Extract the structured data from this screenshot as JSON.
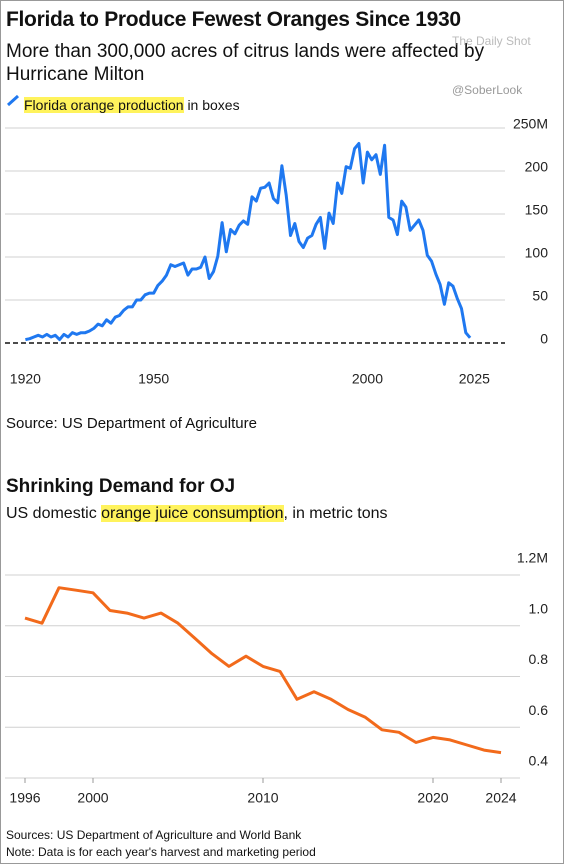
{
  "watermarks": [
    "The Daily Shot",
    "@SoberLook"
  ],
  "chart_data": [
    {
      "type": "line",
      "title": "Florida to Produce Fewest Oranges Since 1930",
      "subtitle": "More than 300,000 acres of citrus lands were affected by Hurricane Milton",
      "unit": "in boxes",
      "source": "Source: US Department of Agriculture",
      "x": [
        1920,
        1921,
        1922,
        1923,
        1924,
        1925,
        1926,
        1927,
        1928,
        1929,
        1930,
        1931,
        1932,
        1933,
        1934,
        1935,
        1936,
        1937,
        1938,
        1939,
        1940,
        1941,
        1942,
        1943,
        1944,
        1945,
        1946,
        1947,
        1948,
        1949,
        1950,
        1951,
        1952,
        1953,
        1954,
        1955,
        1956,
        1957,
        1958,
        1959,
        1960,
        1961,
        1962,
        1963,
        1964,
        1965,
        1966,
        1967,
        1968,
        1969,
        1970,
        1971,
        1972,
        1973,
        1974,
        1975,
        1976,
        1977,
        1978,
        1979,
        1980,
        1981,
        1982,
        1983,
        1984,
        1985,
        1986,
        1987,
        1988,
        1989,
        1990,
        1991,
        1992,
        1993,
        1994,
        1995,
        1996,
        1997,
        1998,
        1999,
        2000,
        2001,
        2002,
        2003,
        2004,
        2005,
        2006,
        2007,
        2008,
        2009,
        2010,
        2011,
        2012,
        2013,
        2014,
        2015,
        2016,
        2017,
        2018,
        2019,
        2020,
        2021,
        2022,
        2023,
        2024
      ],
      "series": [
        {
          "name": "Florida orange production",
          "color": "#1f78f0",
          "values": [
            4,
            5,
            7,
            9,
            7,
            10,
            7,
            9,
            4,
            10,
            7,
            12,
            10,
            12,
            12,
            14,
            17,
            22,
            20,
            27,
            23,
            30,
            32,
            38,
            42,
            42,
            50,
            50,
            56,
            58,
            58,
            67,
            72,
            79,
            91,
            89,
            91,
            93,
            79,
            86,
            86,
            88,
            100,
            75,
            83,
            101,
            140,
            106,
            132,
            127,
            137,
            142,
            138,
            170,
            165,
            180,
            181,
            186,
            168,
            163,
            206,
            172,
            125,
            139,
            118,
            111,
            122,
            125,
            138,
            146,
            110,
            151,
            139,
            186,
            174,
            205,
            203,
            226,
            232,
            186,
            222,
            213,
            219,
            196,
            230,
            146,
            143,
            126,
            165,
            158,
            131,
            137,
            143,
            131,
            102,
            95,
            80,
            68,
            45,
            70,
            66,
            52,
            40,
            12,
            6
          ]
        }
      ],
      "xlim": [
        1915,
        2031
      ],
      "xticks": [
        1920,
        1950,
        2000,
        2025
      ],
      "ylim": [
        0,
        250
      ],
      "yticks": [
        0,
        50,
        100,
        150,
        200,
        {
          "value": 250,
          "label": "250M"
        }
      ],
      "grid": true
    },
    {
      "type": "line",
      "title": "Shrinking Demand for OJ",
      "subtitle_prefix": "US domestic",
      "subtitle_suffix": ", in metric tons",
      "notes": [
        "Sources: US Department of Agriculture and World Bank",
        "Note: Data is for each year's harvest and marketing period"
      ],
      "x": [
        1996,
        1997,
        1998,
        1999,
        2000,
        2001,
        2002,
        2003,
        2004,
        2005,
        2006,
        2007,
        2008,
        2009,
        2010,
        2011,
        2012,
        2013,
        2014,
        2015,
        2016,
        2017,
        2018,
        2019,
        2020,
        2021,
        2022,
        2023,
        2024
      ],
      "series": [
        {
          "name": "orange juice consumption",
          "color": "#f26a1b",
          "values": [
            1.03,
            1.01,
            1.15,
            1.14,
            1.13,
            1.06,
            1.05,
            1.03,
            1.05,
            1.01,
            0.95,
            0.89,
            0.84,
            0.88,
            0.84,
            0.82,
            0.71,
            0.74,
            0.71,
            0.67,
            0.64,
            0.59,
            0.58,
            0.54,
            0.56,
            0.55,
            0.53,
            0.51,
            0.5
          ]
        }
      ],
      "xlim": [
        1995,
        2025
      ],
      "xticks": [
        1996,
        2000,
        2010,
        2020,
        2024
      ],
      "ylim": [
        0.4,
        1.2
      ],
      "yticks": [
        0.4,
        0.6,
        0.8,
        {
          "value": 1.0,
          "label": "1.0"
        },
        {
          "value": 1.2,
          "label": "1.2M"
        }
      ],
      "grid": true
    }
  ]
}
